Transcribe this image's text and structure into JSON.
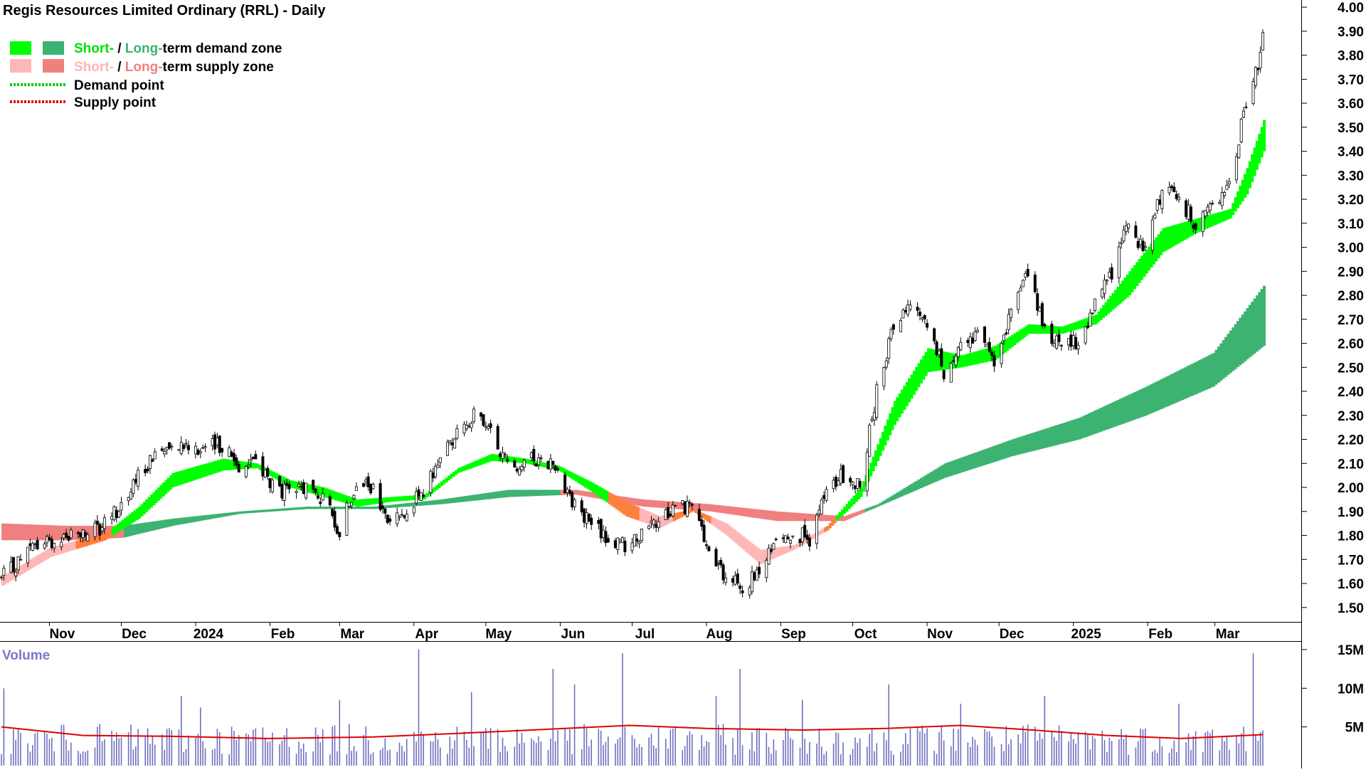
{
  "chart_data": {
    "type": "candlestick",
    "title": "Regis Resources Limited Ordinary (RRL) - Daily",
    "legend": {
      "placement": "top-left",
      "items": [
        {
          "short": "Short-",
          "sep": " / ",
          "long": "Long-",
          "rest": "term demand zone",
          "colors": [
            "#00ff00",
            "#3cb371"
          ]
        },
        {
          "short": "Short-",
          "sep": " / ",
          "long": "Long-",
          "rest": "term supply zone",
          "colors": [
            "#ffb6b6",
            "#f08080"
          ]
        },
        {
          "label": "Demand point",
          "color": "#00cc00",
          "style": "dotted"
        },
        {
          "label": "Supply point",
          "color": "#dd0000",
          "style": "dotted"
        }
      ]
    },
    "x_ticks": [
      "Nov",
      "Dec",
      "2024",
      "Feb",
      "Mar",
      "Apr",
      "May",
      "Jun",
      "Jul",
      "Aug",
      "Sep",
      "Oct",
      "Nov",
      "Dec",
      "2025",
      "Feb",
      "Mar"
    ],
    "x_range": [
      "2023-10-12",
      "2025-03-21"
    ],
    "price_axis": {
      "ylim": [
        1.44,
        4.03
      ],
      "ticks": [
        "1.50",
        "1.60",
        "1.70",
        "1.80",
        "1.90",
        "2.00",
        "2.10",
        "2.20",
        "2.30",
        "2.40",
        "2.50",
        "2.60",
        "2.70",
        "2.80",
        "2.90",
        "3.00",
        "3.10",
        "3.20",
        "3.30",
        "3.40",
        "3.50",
        "3.60",
        "3.70",
        "3.80",
        "3.90",
        "4.00"
      ]
    },
    "close_path": [
      [
        "2023-10-12",
        1.62
      ],
      [
        "2023-10-25",
        1.75
      ],
      [
        "2023-11-08",
        1.8
      ],
      [
        "2023-11-22",
        1.82
      ],
      [
        "2023-12-01",
        1.93
      ],
      [
        "2023-12-12",
        2.1
      ],
      [
        "2023-12-22",
        2.2
      ],
      [
        "2024-01-05",
        2.16
      ],
      [
        "2024-01-12",
        2.18
      ],
      [
        "2024-01-19",
        2.09
      ],
      [
        "2024-01-26",
        2.12
      ],
      [
        "2024-02-02",
        2.0
      ],
      [
        "2024-02-09",
        1.97
      ],
      [
        "2024-02-16",
        2.0
      ],
      [
        "2024-02-23",
        1.95
      ],
      [
        "2024-03-01",
        1.82
      ],
      [
        "2024-03-08",
        2.03
      ],
      [
        "2024-03-15",
        1.98
      ],
      [
        "2024-03-22",
        1.84
      ],
      [
        "2024-03-29",
        1.92
      ],
      [
        "2024-04-05",
        1.97
      ],
      [
        "2024-04-12",
        2.13
      ],
      [
        "2024-04-19",
        2.23
      ],
      [
        "2024-04-26",
        2.3
      ],
      [
        "2024-05-03",
        2.22
      ],
      [
        "2024-05-10",
        2.1
      ],
      [
        "2024-05-17",
        2.1
      ],
      [
        "2024-05-24",
        2.13
      ],
      [
        "2024-05-31",
        2.08
      ],
      [
        "2024-06-07",
        1.92
      ],
      [
        "2024-06-14",
        1.85
      ],
      [
        "2024-06-21",
        1.78
      ],
      [
        "2024-06-28",
        1.76
      ],
      [
        "2024-07-05",
        1.8
      ],
      [
        "2024-07-12",
        1.85
      ],
      [
        "2024-07-19",
        1.93
      ],
      [
        "2024-07-26",
        1.92
      ],
      [
        "2024-08-02",
        1.72
      ],
      [
        "2024-08-09",
        1.62
      ],
      [
        "2024-08-16",
        1.58
      ],
      [
        "2024-08-23",
        1.64
      ],
      [
        "2024-08-30",
        1.78
      ],
      [
        "2024-09-06",
        1.82
      ],
      [
        "2024-09-13",
        1.78
      ],
      [
        "2024-09-20",
        1.98
      ],
      [
        "2024-09-27",
        2.05
      ],
      [
        "2024-10-04",
        2.0
      ],
      [
        "2024-10-11",
        2.4
      ],
      [
        "2024-10-18",
        2.68
      ],
      [
        "2024-10-25",
        2.78
      ],
      [
        "2024-11-01",
        2.68
      ],
      [
        "2024-11-08",
        2.48
      ],
      [
        "2024-11-15",
        2.6
      ],
      [
        "2024-11-22",
        2.62
      ],
      [
        "2024-11-29",
        2.54
      ],
      [
        "2024-12-06",
        2.72
      ],
      [
        "2024-12-13",
        2.9
      ],
      [
        "2024-12-20",
        2.64
      ],
      [
        "2024-12-27",
        2.6
      ],
      [
        "2025-01-03",
        2.6
      ],
      [
        "2025-01-10",
        2.76
      ],
      [
        "2025-01-17",
        2.9
      ],
      [
        "2025-01-24",
        3.1
      ],
      [
        "2025-01-31",
        2.98
      ],
      [
        "2025-02-07",
        3.25
      ],
      [
        "2025-02-14",
        3.2
      ],
      [
        "2025-02-21",
        3.1
      ],
      [
        "2025-02-28",
        3.18
      ],
      [
        "2025-03-05",
        3.2
      ],
      [
        "2025-03-10",
        3.35
      ],
      [
        "2025-03-13",
        3.58
      ],
      [
        "2025-03-17",
        3.68
      ],
      [
        "2025-03-21",
        3.86
      ]
    ],
    "short_zone": [
      [
        "2023-10-12",
        1.59,
        1.63
      ],
      [
        "2023-11-01",
        1.71,
        1.75
      ],
      [
        "2023-11-24",
        1.78,
        1.81
      ],
      [
        "2023-12-08",
        1.87,
        1.92
      ],
      [
        "2023-12-22",
        2.0,
        2.06
      ],
      [
        "2024-01-12",
        2.07,
        2.12
      ],
      [
        "2024-01-26",
        2.08,
        2.1
      ],
      [
        "2024-02-09",
        2.0,
        2.03
      ],
      [
        "2024-02-23",
        1.96,
        2.0
      ],
      [
        "2024-03-08",
        1.92,
        1.95
      ],
      [
        "2024-03-22",
        1.94,
        1.96
      ],
      [
        "2024-04-05",
        1.95,
        1.97
      ],
      [
        "2024-04-19",
        2.06,
        2.08
      ],
      [
        "2024-05-03",
        2.11,
        2.14
      ],
      [
        "2024-05-17",
        2.1,
        2.12
      ],
      [
        "2024-05-31",
        2.07,
        2.09
      ],
      [
        "2024-06-14",
        1.98,
        2.02
      ],
      [
        "2024-06-28",
        1.88,
        1.94
      ],
      [
        "2024-07-12",
        1.83,
        1.88
      ],
      [
        "2024-07-26",
        1.9,
        1.91
      ],
      [
        "2024-08-09",
        1.8,
        1.85
      ],
      [
        "2024-08-23",
        1.68,
        1.74
      ],
      [
        "2024-09-06",
        1.74,
        1.76
      ],
      [
        "2024-09-20",
        1.82,
        1.84
      ],
      [
        "2024-10-04",
        1.96,
        2.0
      ],
      [
        "2024-10-18",
        2.26,
        2.36
      ],
      [
        "2024-11-01",
        2.48,
        2.58
      ],
      [
        "2024-11-15",
        2.5,
        2.55
      ],
      [
        "2024-11-29",
        2.53,
        2.59
      ],
      [
        "2024-12-13",
        2.64,
        2.68
      ],
      [
        "2024-12-27",
        2.64,
        2.67
      ],
      [
        "2025-01-10",
        2.68,
        2.72
      ],
      [
        "2025-01-24",
        2.8,
        2.9
      ],
      [
        "2025-02-07",
        2.98,
        3.08
      ],
      [
        "2025-02-21",
        3.06,
        3.12
      ],
      [
        "2025-03-07",
        3.12,
        3.16
      ],
      [
        "2025-03-14",
        3.22,
        3.33
      ],
      [
        "2025-03-21",
        3.4,
        3.53
      ]
    ],
    "long_zone": [
      [
        "2023-10-12",
        1.78,
        1.85
      ],
      [
        "2023-11-08",
        1.78,
        1.84
      ],
      [
        "2023-12-01",
        1.79,
        1.84
      ],
      [
        "2023-12-22",
        1.84,
        1.87
      ],
      [
        "2024-01-19",
        1.89,
        1.9
      ],
      [
        "2024-02-16",
        1.91,
        1.92
      ],
      [
        "2024-03-15",
        1.91,
        1.92
      ],
      [
        "2024-04-12",
        1.93,
        1.95
      ],
      [
        "2024-05-10",
        1.96,
        1.99
      ],
      [
        "2024-06-07",
        1.97,
        1.99
      ],
      [
        "2024-07-05",
        1.92,
        1.95
      ],
      [
        "2024-08-02",
        1.9,
        1.93
      ],
      [
        "2024-08-30",
        1.86,
        1.9
      ],
      [
        "2024-09-27",
        1.86,
        1.88
      ],
      [
        "2024-10-11",
        1.92,
        1.93
      ],
      [
        "2024-11-08",
        2.04,
        2.1
      ],
      [
        "2024-12-06",
        2.13,
        2.2
      ],
      [
        "2025-01-03",
        2.2,
        2.29
      ],
      [
        "2025-01-31",
        2.3,
        2.42
      ],
      [
        "2025-02-28",
        2.42,
        2.56
      ],
      [
        "2025-03-21",
        2.59,
        2.84
      ]
    ],
    "volume": {
      "label": "Volume",
      "ticks": [
        "5M",
        "10M",
        "15M"
      ],
      "ylim": [
        0,
        16
      ],
      "base_level_M": 4.0,
      "spikes": [
        [
          "2023-10-13",
          10
        ],
        [
          "2023-12-26",
          9
        ],
        [
          "2024-01-03",
          7.5
        ],
        [
          "2024-03-01",
          8.5
        ],
        [
          "2024-04-03",
          15
        ],
        [
          "2024-04-25",
          9.5
        ],
        [
          "2024-05-29",
          12.5
        ],
        [
          "2024-06-07",
          10.5
        ],
        [
          "2024-06-27",
          14.5
        ],
        [
          "2024-08-05",
          9
        ],
        [
          "2024-08-15",
          12.5
        ],
        [
          "2024-09-10",
          8.5
        ],
        [
          "2024-10-16",
          10.5
        ],
        [
          "2024-11-15",
          8
        ],
        [
          "2024-12-20",
          9
        ],
        [
          "2025-02-14",
          8
        ],
        [
          "2025-03-17",
          14.5
        ]
      ],
      "moving_average": [
        [
          "2023-10-12",
          5.0
        ],
        [
          "2023-11-15",
          3.9
        ],
        [
          "2023-12-20",
          3.8
        ],
        [
          "2024-01-31",
          3.5
        ],
        [
          "2024-03-15",
          3.7
        ],
        [
          "2024-04-15",
          4.1
        ],
        [
          "2024-05-20",
          4.6
        ],
        [
          "2024-06-30",
          5.2
        ],
        [
          "2024-08-01",
          4.8
        ],
        [
          "2024-09-10",
          4.6
        ],
        [
          "2024-10-15",
          4.8
        ],
        [
          "2024-11-15",
          5.2
        ],
        [
          "2024-12-15",
          4.6
        ],
        [
          "2025-01-15",
          3.9
        ],
        [
          "2025-02-15",
          3.5
        ],
        [
          "2025-03-21",
          4.0
        ]
      ]
    }
  }
}
